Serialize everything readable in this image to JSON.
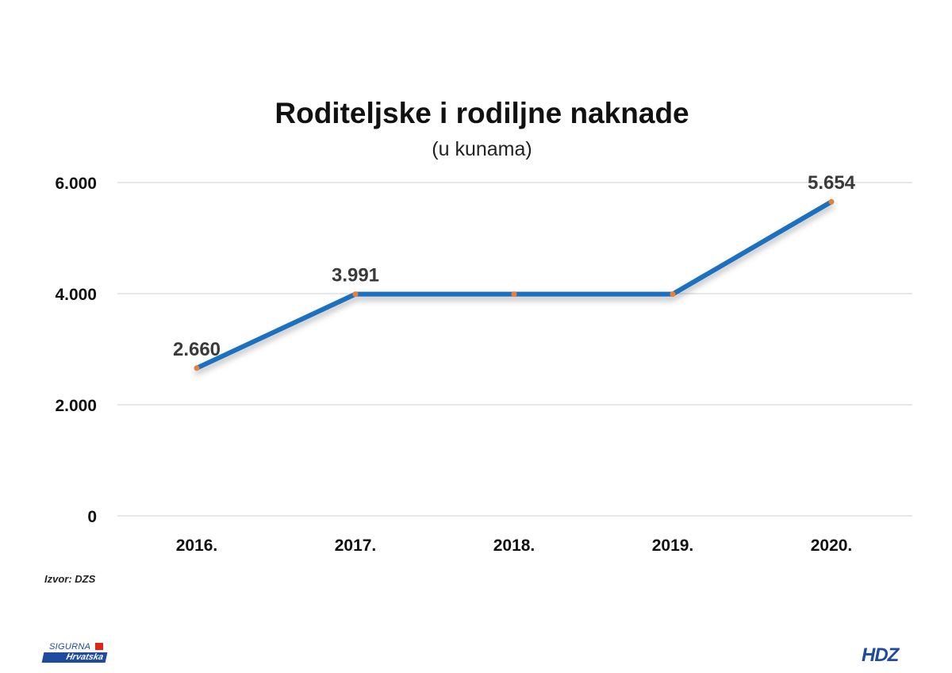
{
  "chart_data": {
    "type": "line",
    "title": "Roditeljske i rodiljne naknade",
    "subtitle": "(u kunama)",
    "categories": [
      "2016.",
      "2017.",
      "2018.",
      "2019.",
      "2020."
    ],
    "series": [
      {
        "values": [
          2660,
          3991,
          3991,
          3991,
          5654
        ],
        "labels": [
          "2.660",
          "3.991",
          "",
          "",
          "5.654"
        ],
        "color": "#1f6fc0",
        "marker_color": "#e8803a"
      }
    ],
    "ylim": [
      0,
      6000
    ],
    "yticks": [
      0,
      2000,
      4000,
      6000
    ],
    "ytick_labels": [
      "0",
      "2.000",
      "4.000",
      "6.000"
    ],
    "grid": true,
    "legend": "none"
  },
  "source": "Izvor: DZS",
  "logos": {
    "left_line1": "SIGURNA",
    "left_line2": "Hrvatska",
    "right": "HDZ"
  },
  "colors": {
    "line": "#1f6fc0",
    "marker": "#e8803a",
    "grid": "#d0d0d0",
    "brand_blue": "#1e4aa0",
    "brand_red": "#e2231a"
  }
}
